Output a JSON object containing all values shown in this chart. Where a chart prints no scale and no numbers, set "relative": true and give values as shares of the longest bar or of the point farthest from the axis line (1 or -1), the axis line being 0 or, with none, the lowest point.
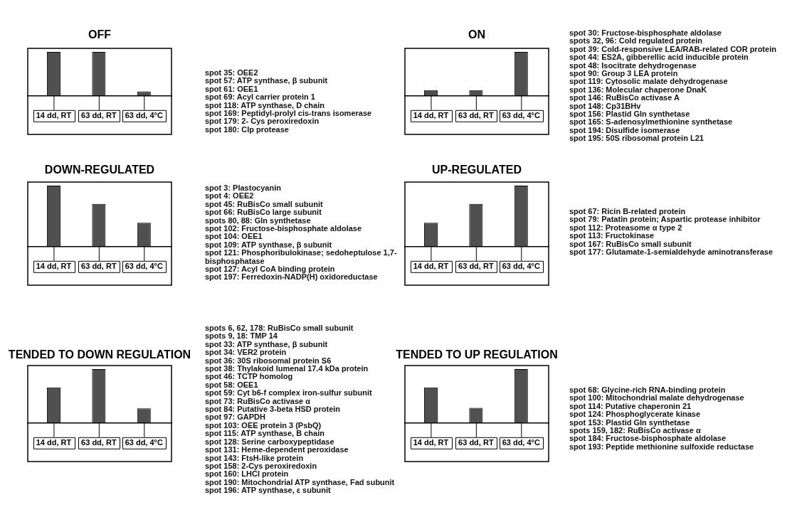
{
  "chart_data": [
    {
      "type": "bar",
      "title": "OFF",
      "categories": [
        "14 dd, RT",
        "63 dd, RT",
        "63 dd, 4°C"
      ],
      "values": [
        1,
        1,
        0.1
      ],
      "relative": true,
      "color": "#505050",
      "legend": false,
      "annotations": [
        "spot 35: OEE2",
        "spot 57: ATP synthase, β subunit",
        "spot 61: OEE1",
        "spot 69: Acyl carrier protein 1",
        "spot 118: ATP synthase, D chain",
        "spot 169: Peptidyl-prolyl cis-trans isomerase",
        "spot 179: 2- Cys peroxiredoxin",
        "spot 180: Clp protease"
      ]
    },
    {
      "type": "bar",
      "title": "ON",
      "categories": [
        "14 dd, RT",
        "63 dd, RT",
        "63 dd, 4°C"
      ],
      "values": [
        0.13,
        0.13,
        1
      ],
      "relative": true,
      "color": "#505050",
      "legend": false,
      "annotations": [
        "spot 30: Fructose-bisphosphate aldolase",
        "spots 32, 96: Cold regulated protein",
        "spot 39: Cold-responsive LEA/RAB-related COR protein",
        "spot 44: ES2A, gibberellic acid inducible protein",
        "spot 48: Isocitrate dehydrogenase",
        "spot 90: Group 3 LEA protein",
        "spot 119: Cytosolic malate dehydrogenase",
        "spot 136: Molecular chaperone DnaK",
        "spot 146: RuBisCo activase A",
        "spot 148: Cp31BHv",
        "spot 156: Plastid Gln synthetase",
        "spot 165: S-adenosylmethionine synthetase",
        "spot 194: Disulfide isomerase",
        "spot 195: 50S ribosomal protein L21"
      ]
    },
    {
      "type": "bar",
      "title": "DOWN-REGULATED",
      "categories": [
        "14 dd, RT",
        "63 dd, RT",
        "63 dd, 4°C"
      ],
      "values": [
        1,
        0.7,
        0.39
      ],
      "relative": true,
      "color": "#505050",
      "legend": false,
      "annotations": [
        "spot 3: Plastocyanin",
        "spot 4: OEE2",
        "spot 45: RuBisCo small subunit",
        "spot 66: RuBisCo large subunit",
        "spots 80, 88: Gln synthetase",
        "spot 102: Fructose-bisphosphate aldolase",
        "spot 104: OEE1",
        "spot 109: ATP synthase, β subunit",
        "spot 121: Phosphoribulokinase; sedoheptulose 1,7-bisphosphatase",
        "spot 127: Acyl CoA binding protein",
        "spot 197: Ferredoxin-NADP(H) oxidoreductase"
      ]
    },
    {
      "type": "bar",
      "title": "UP-REGULATED",
      "categories": [
        "14 dd, RT",
        "63 dd, RT",
        "63 dd, 4°C"
      ],
      "values": [
        0.39,
        0.7,
        1
      ],
      "relative": true,
      "color": "#505050",
      "legend": false,
      "annotations": [
        "spot 67: Ricin B-related protein",
        "spot 79: Patatin protein; Aspartic protease inhibitor",
        "spot 112: Proteasome α type 2",
        "spot 113: Fructokinase",
        "spot 167: RuBisCo small subunit",
        "spot 177: Glutamate-1-semialdehyde aminotransferase"
      ]
    },
    {
      "type": "bar",
      "title": "TENDED TO DOWN REGULATION",
      "categories": [
        "14 dd, RT",
        "63 dd, RT",
        "63 dd, 4°C"
      ],
      "values": [
        0.66,
        1,
        0.27
      ],
      "relative": true,
      "color": "#505050",
      "legend": false,
      "annotations": [
        "spots 6, 62, 178: RuBisCo small subunit",
        "spots 9, 18: TMP 14",
        "spot 33: ATP synthase, β subunit",
        "spot 34: VER2 protein",
        "spot 36: 30S ribosomal protein S6",
        "spot 38: Thylakoid lumenal 17.4 kDa protein",
        "spot 46: TCTP homolog",
        "spot 58: OEE1",
        "spot 59: Cyt b6-f complex iron-sulfur subunit",
        "spot 73: RuBisCo activase α",
        "spot 84: Putative 3-beta HSD protein",
        "spot 97: GAPDH",
        "spot 103: OEE protein 3 (PsbQ)",
        "spot 115: ATP synthase, B chain",
        "spot 128: Serine carboxypeptidase",
        "spot 131: Heme-dependent peroxidase",
        "spot 143: FtsH-like protein",
        "spot 158: 2-Cys peroxiredoxin",
        "spot 160: LHCI protein",
        "spot 190: Mitochondrial ATP synthase, Fad subunit",
        "spot 196: ATP synthase, ε subunit"
      ]
    },
    {
      "type": "bar",
      "title": "TENDED TO UP REGULATION",
      "categories": [
        "14 dd, RT",
        "63 dd, RT",
        "63 dd, 4°C"
      ],
      "values": [
        0.66,
        0.28,
        1
      ],
      "relative": true,
      "color": "#505050",
      "legend": false,
      "annotations": [
        "spot 68: Glycine-rich RNA-binding protein",
        "spot 100: Mitochondrial malate dehydrogenase",
        "spot 114: Putative chaperonin 21",
        "spot 124: Phosphoglycerate kinase",
        "spot 153: Plastid Gln synthetase",
        "spots 159, 182: RuBisCo activase α",
        "spot 184: Fructose-bisphosphate aldolase",
        "spot 193: Peptide methionine sulfoxide reductase"
      ]
    }
  ]
}
